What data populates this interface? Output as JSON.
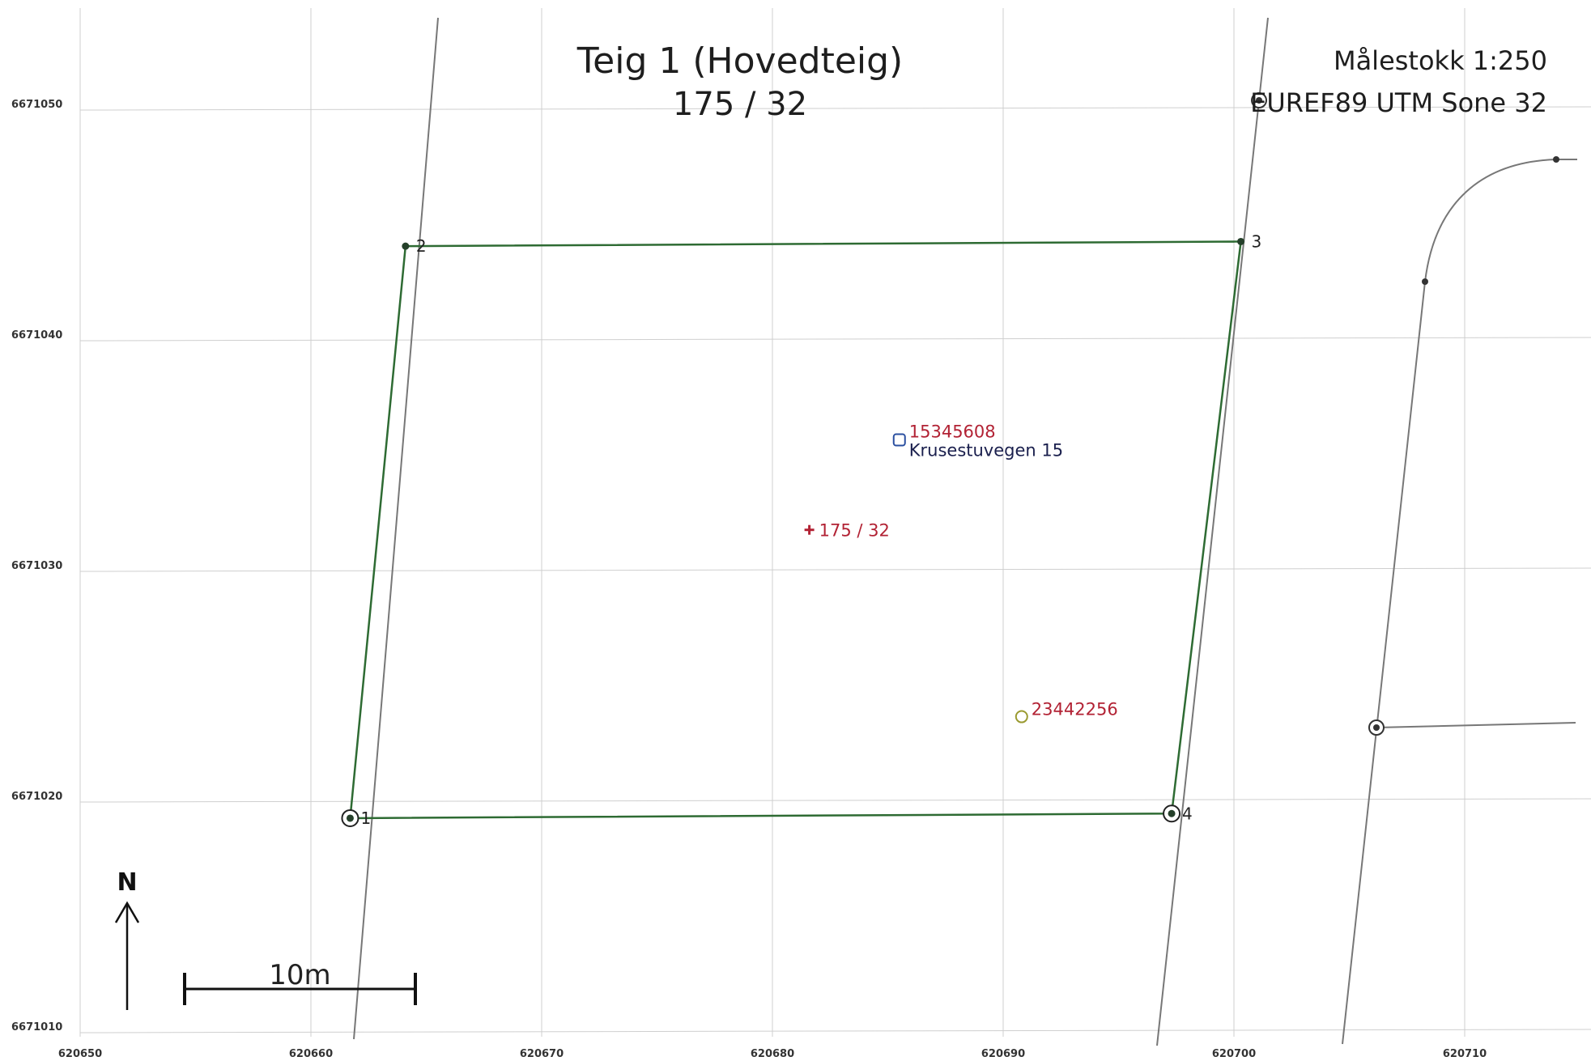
{
  "title": {
    "line1": "Teig 1 (Hovedteig)",
    "line2": "175 / 32"
  },
  "scale": {
    "label": "Målestokk 1:250"
  },
  "crs": {
    "label": "EUREF89 UTM Sone 32"
  },
  "grid": {
    "x_ticks": [
      "620650",
      "620660",
      "620670",
      "620680",
      "620690",
      "620700",
      "620710"
    ],
    "y_ticks": [
      "6671050",
      "6671040",
      "6671030",
      "6671020",
      "6671010"
    ]
  },
  "parcel": {
    "vertices": [
      {
        "label": "1",
        "east": 620661.7,
        "north": 6671019.3,
        "marker": "circle-dot"
      },
      {
        "label": "2",
        "east": 620664.1,
        "north": 6671044.1,
        "marker": "dot"
      },
      {
        "label": "3",
        "east": 620700.3,
        "north": 6671044.3,
        "marker": "dot"
      },
      {
        "label": "4",
        "east": 620697.3,
        "north": 6671019.5,
        "marker": "circle-dot"
      }
    ],
    "line_color": "#2e6b33",
    "centroid": {
      "label": "175 / 32",
      "east": 620681.6,
      "north": 6671031.8
    }
  },
  "building": {
    "id": "15345608",
    "address": "Krusestuvegen 15",
    "east": 620685.5,
    "north": 6671035.7
  },
  "point_feature": {
    "id": "23442256",
    "east": 620690.8,
    "north": 6671023.7
  },
  "colors": {
    "label_red": "#b22234",
    "label_navy": "#1a1f4d",
    "grid": "#cfcfcf",
    "neighbor_line": "#777777"
  },
  "scale_bar": {
    "label": "10m",
    "length_m": 10
  },
  "north_arrow": {
    "label": "N"
  }
}
